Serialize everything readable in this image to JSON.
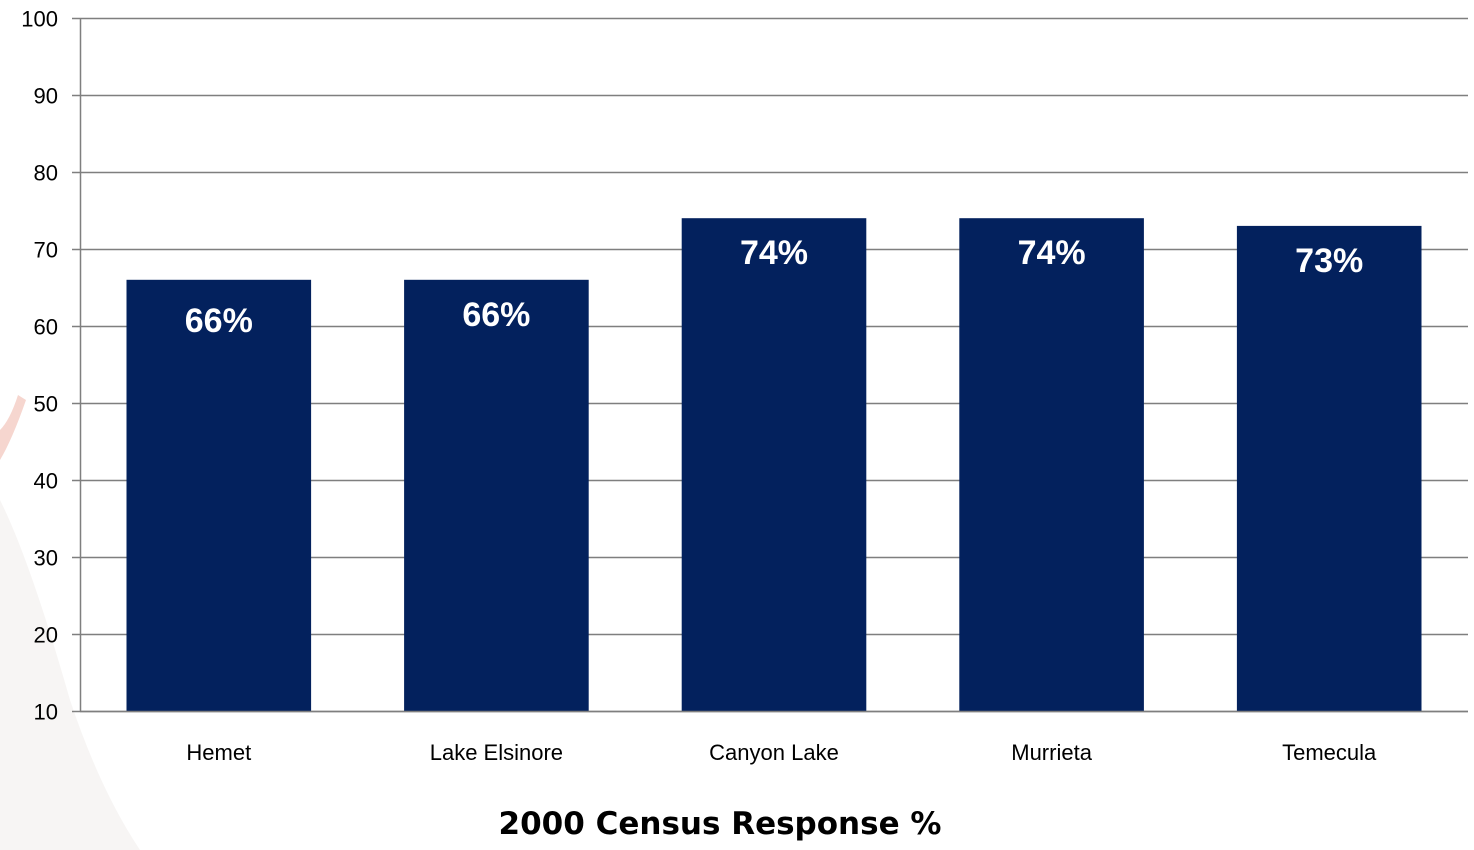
{
  "chart_data": {
    "type": "bar",
    "categories": [
      "Hemet",
      "Lake Elsinore",
      "Canyon Lake",
      "Murrieta",
      "Temecula"
    ],
    "values": [
      66,
      66,
      74,
      74,
      73
    ],
    "data_labels": [
      "66%",
      "66%",
      "74%",
      "74%",
      "73%"
    ],
    "xlabel": "2000 Census Response %",
    "ylabel": "",
    "ylim": [
      10,
      100
    ],
    "yticks": [
      10,
      20,
      30,
      40,
      50,
      60,
      70,
      80,
      90,
      100
    ],
    "grid": true,
    "legend": "none",
    "colors": {
      "bar": "#03215D",
      "grid": "#7f7f7f",
      "axis": "#7f7f7f",
      "label": "#ffffff"
    }
  }
}
